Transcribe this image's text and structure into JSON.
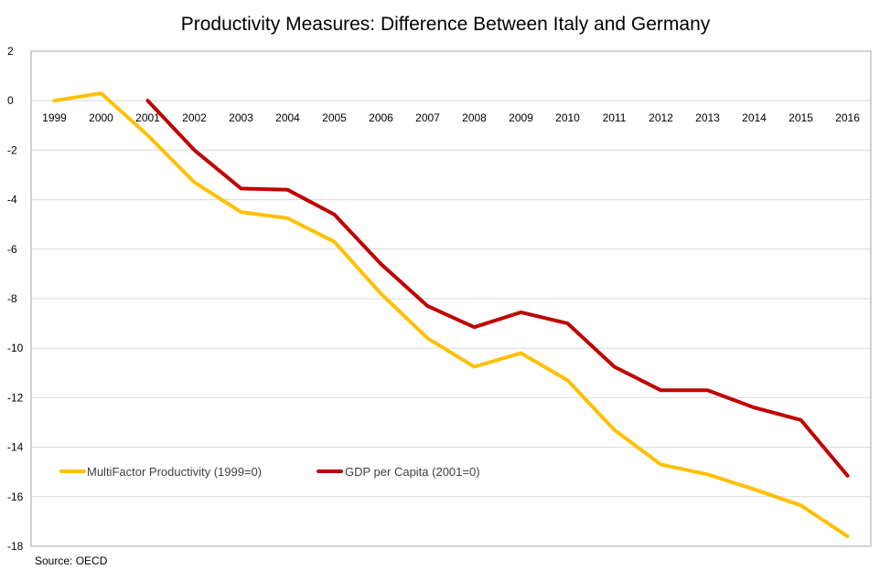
{
  "chart_data": {
    "type": "line",
    "title": "Productivity Measures: Difference Between Italy and Germany",
    "xlabel": "",
    "ylabel": "",
    "categories": [
      "1999",
      "2000",
      "2001",
      "2002",
      "2003",
      "2004",
      "2005",
      "2006",
      "2007",
      "2008",
      "2009",
      "2010",
      "2011",
      "2012",
      "2013",
      "2014",
      "2015",
      "2016"
    ],
    "ylim": [
      -18,
      2
    ],
    "yticks": [
      2,
      0,
      -2,
      -4,
      -6,
      -8,
      -10,
      -12,
      -14,
      -16,
      -18
    ],
    "grid": true,
    "legend_position": "bottom-left-inside",
    "series": [
      {
        "name": "MultiFactor Productivity (1999=0)",
        "color": "#FFC000",
        "values": [
          0.0,
          0.3,
          -1.4,
          -3.3,
          -4.5,
          -4.75,
          -5.7,
          -7.8,
          -9.6,
          -10.75,
          -10.2,
          -11.3,
          -13.3,
          -14.7,
          -15.1,
          -15.7,
          -16.35,
          -17.6
        ]
      },
      {
        "name": "GDP per Capita (2001=0)",
        "color": "#C00000",
        "values": [
          null,
          null,
          0.0,
          -2.0,
          -3.55,
          -3.6,
          -4.6,
          -6.6,
          -8.3,
          -9.15,
          -8.55,
          -9.0,
          -10.75,
          -11.7,
          -11.7,
          -12.4,
          -12.9,
          -15.15
        ]
      }
    ],
    "source": "Source: OECD"
  }
}
